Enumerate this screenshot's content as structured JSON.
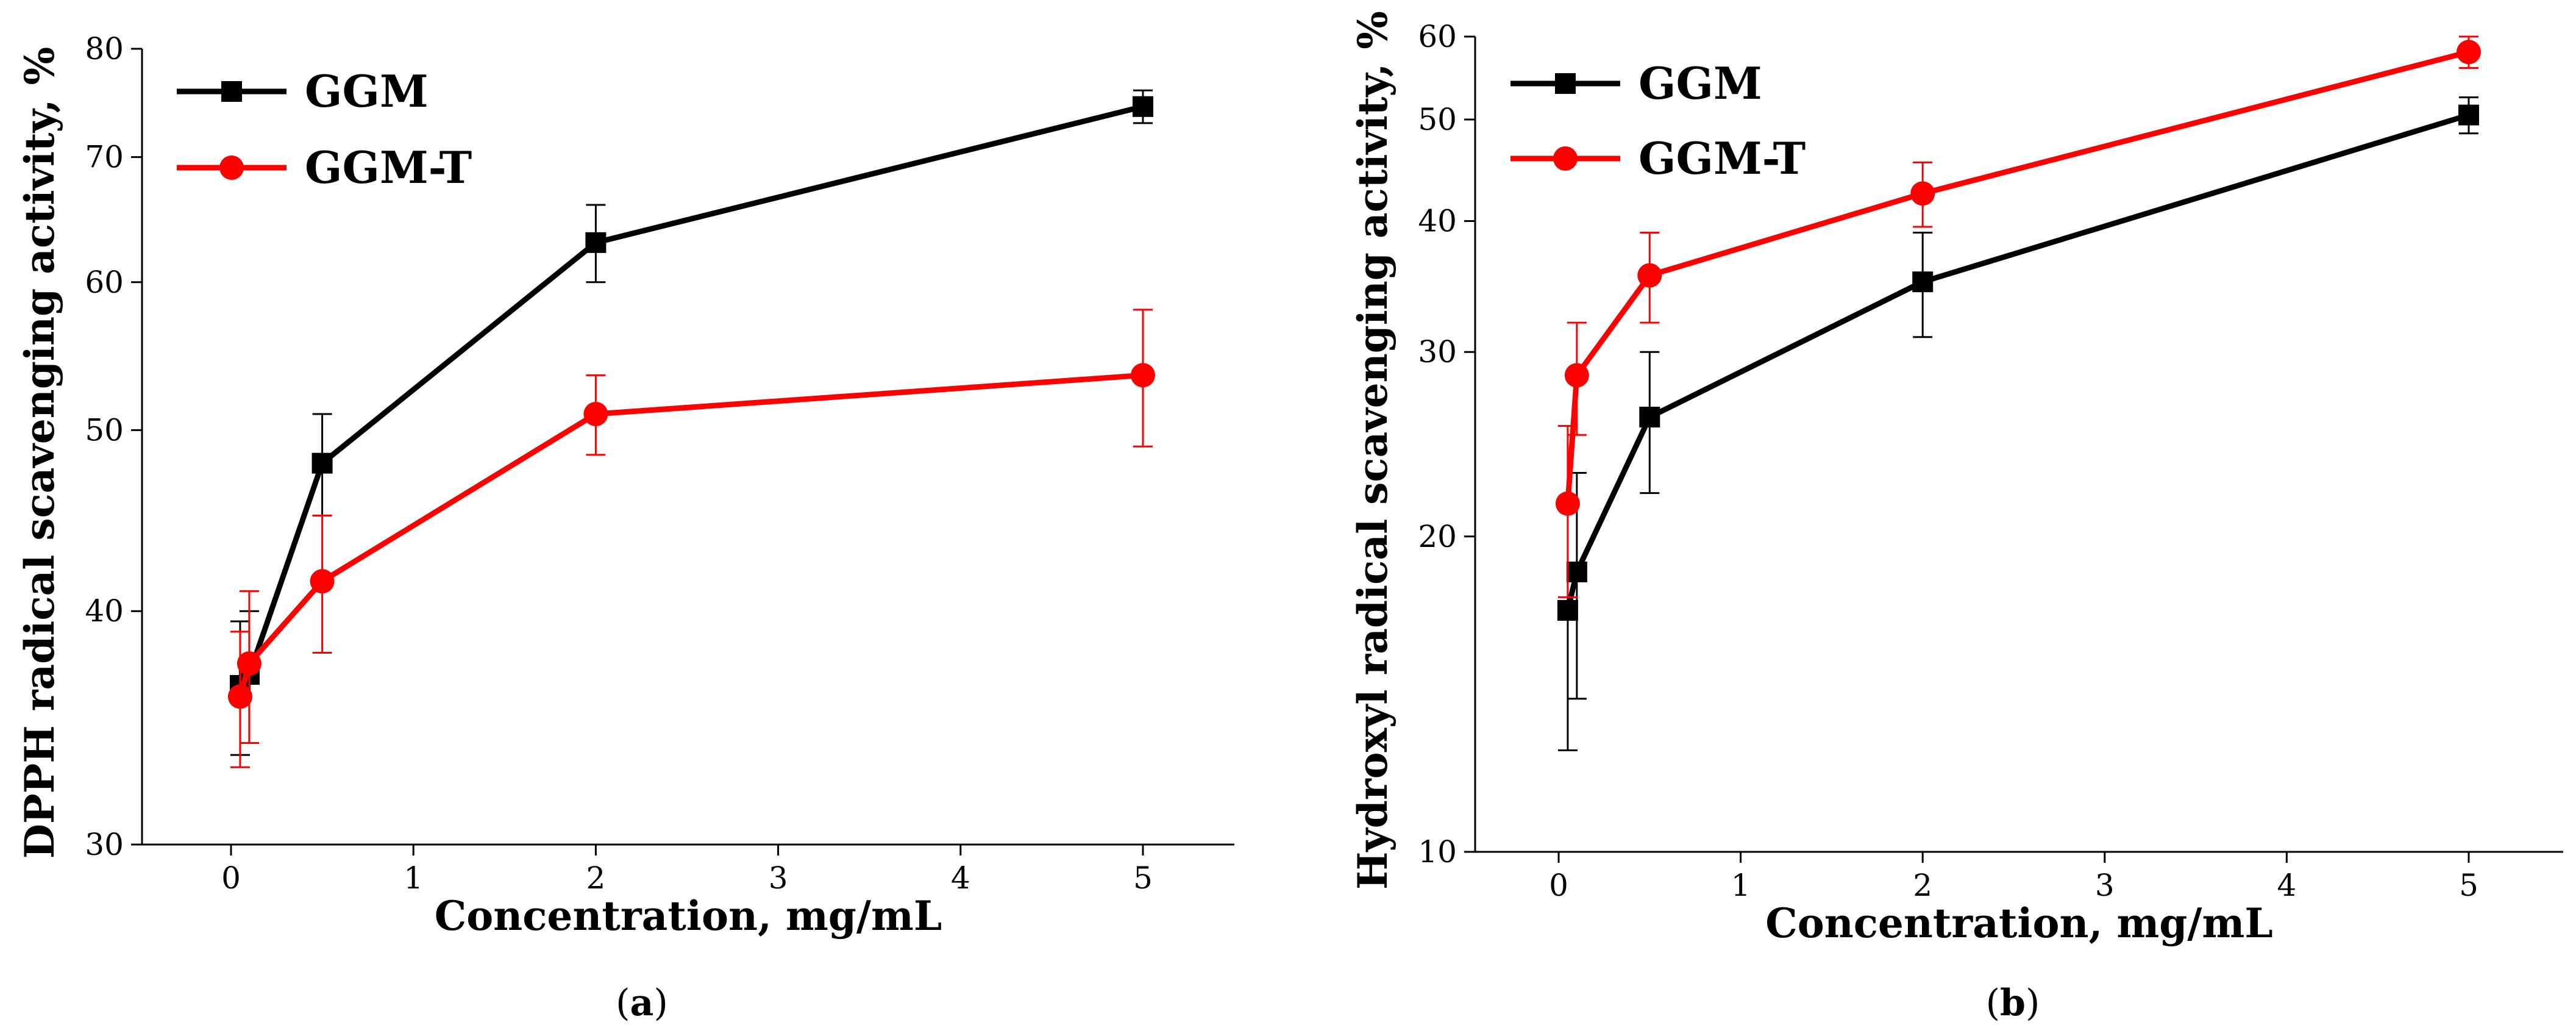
{
  "chart_data": [
    {
      "type": "line",
      "panel_label": "a",
      "xlabel": "Concentration, mg/mL",
      "ylabel": "DPPH radical scavenging activity, %",
      "yscale": "log",
      "ylim": [
        30,
        80
      ],
      "yticks": [
        30,
        40,
        50,
        60,
        70,
        80
      ],
      "xticks": [
        "0",
        "1",
        "2",
        "3",
        "4",
        "5"
      ],
      "legend_position": "top-left",
      "series": [
        {
          "name": "GGM",
          "color": "#000000",
          "marker": "square",
          "x": [
            0.05,
            0.1,
            0.5,
            2,
            5
          ],
          "y": [
            36.5,
            37.0,
            48.0,
            63.0,
            74.5
          ],
          "err": [
            3.0,
            3.0,
            3.0,
            3.0,
            1.5
          ]
        },
        {
          "name": "GGM-T",
          "color": "#ff0000",
          "marker": "circle",
          "x": [
            0.05,
            0.1,
            0.5,
            2,
            5
          ],
          "y": [
            36.0,
            37.5,
            41.5,
            51.0,
            53.5
          ],
          "err": [
            3.0,
            3.5,
            3.5,
            2.5,
            4.5
          ]
        }
      ]
    },
    {
      "type": "line",
      "panel_label": "b",
      "xlabel": "Concentration, mg/mL",
      "ylabel": "Hydroxyl radical scavenging activity, %",
      "yscale": "log",
      "ylim": [
        10,
        60
      ],
      "yticks": [
        10,
        20,
        30,
        40,
        50,
        60
      ],
      "xticks": [
        "0",
        "1",
        "2",
        "3",
        "4",
        "5"
      ],
      "legend_position": "top-left",
      "series": [
        {
          "name": "GGM",
          "color": "#000000",
          "marker": "square",
          "x": [
            0.05,
            0.1,
            0.5,
            2,
            5
          ],
          "y": [
            17.0,
            18.5,
            26.0,
            35.0,
            50.5
          ],
          "err": [
            4.5,
            4.5,
            4.0,
            4.0,
            2.0
          ]
        },
        {
          "name": "GGM-T",
          "color": "#ff0000",
          "marker": "circle",
          "x": [
            0.05,
            0.1,
            0.5,
            2,
            5
          ],
          "y": [
            21.5,
            28.5,
            35.5,
            42.5,
            58.0
          ],
          "err": [
            4.0,
            3.5,
            3.5,
            3.0,
            2.0
          ]
        }
      ]
    }
  ]
}
